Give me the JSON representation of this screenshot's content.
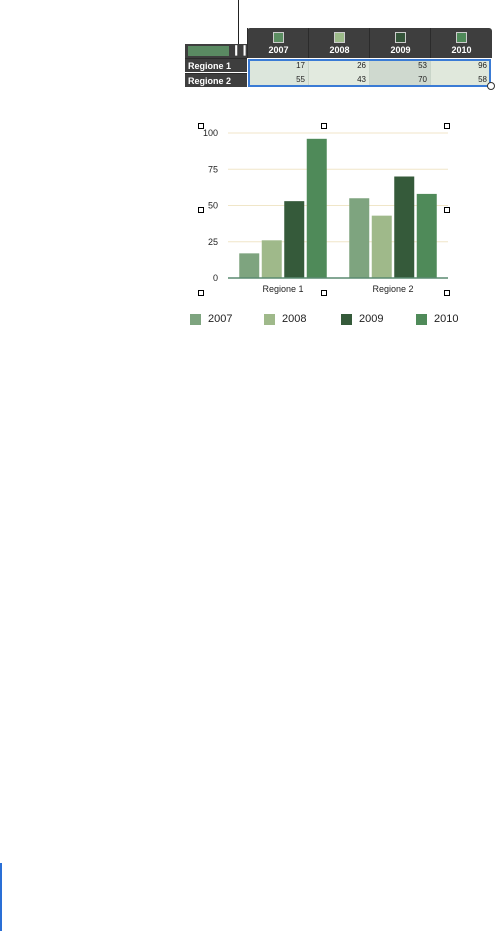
{
  "editor": {
    "corner_icon": "bar-chart-icon",
    "columns": [
      {
        "label": "2007",
        "color": "#5c8e62"
      },
      {
        "label": "2008",
        "color": "#9dbb8a"
      },
      {
        "label": "2009",
        "color": "#35553a"
      },
      {
        "label": "2010",
        "color": "#4f8a59"
      }
    ],
    "rows": [
      {
        "label": "Regione 1",
        "values": [
          "17",
          "26",
          "53",
          "96"
        ]
      },
      {
        "label": "Regione 2",
        "values": [
          "55",
          "43",
          "70",
          "58"
        ]
      }
    ]
  },
  "chart_data": {
    "type": "bar",
    "categories": [
      "Regione 1",
      "Regione 2"
    ],
    "series": [
      {
        "name": "2007",
        "values": [
          17,
          55
        ],
        "color": "#7ea47f"
      },
      {
        "name": "2008",
        "values": [
          26,
          43
        ],
        "color": "#9fb98a"
      },
      {
        "name": "2009",
        "values": [
          53,
          70
        ],
        "color": "#355a3a"
      },
      {
        "name": "2010",
        "values": [
          96,
          58
        ],
        "color": "#4f8a59"
      }
    ],
    "ylim": [
      0,
      100
    ],
    "yticks": [
      "0",
      "25",
      "50",
      "75",
      "100"
    ],
    "grid": true,
    "gridline_color": "#f0e6c8",
    "legend_position": "bottom",
    "title": "",
    "xlabel": "",
    "ylabel": ""
  }
}
